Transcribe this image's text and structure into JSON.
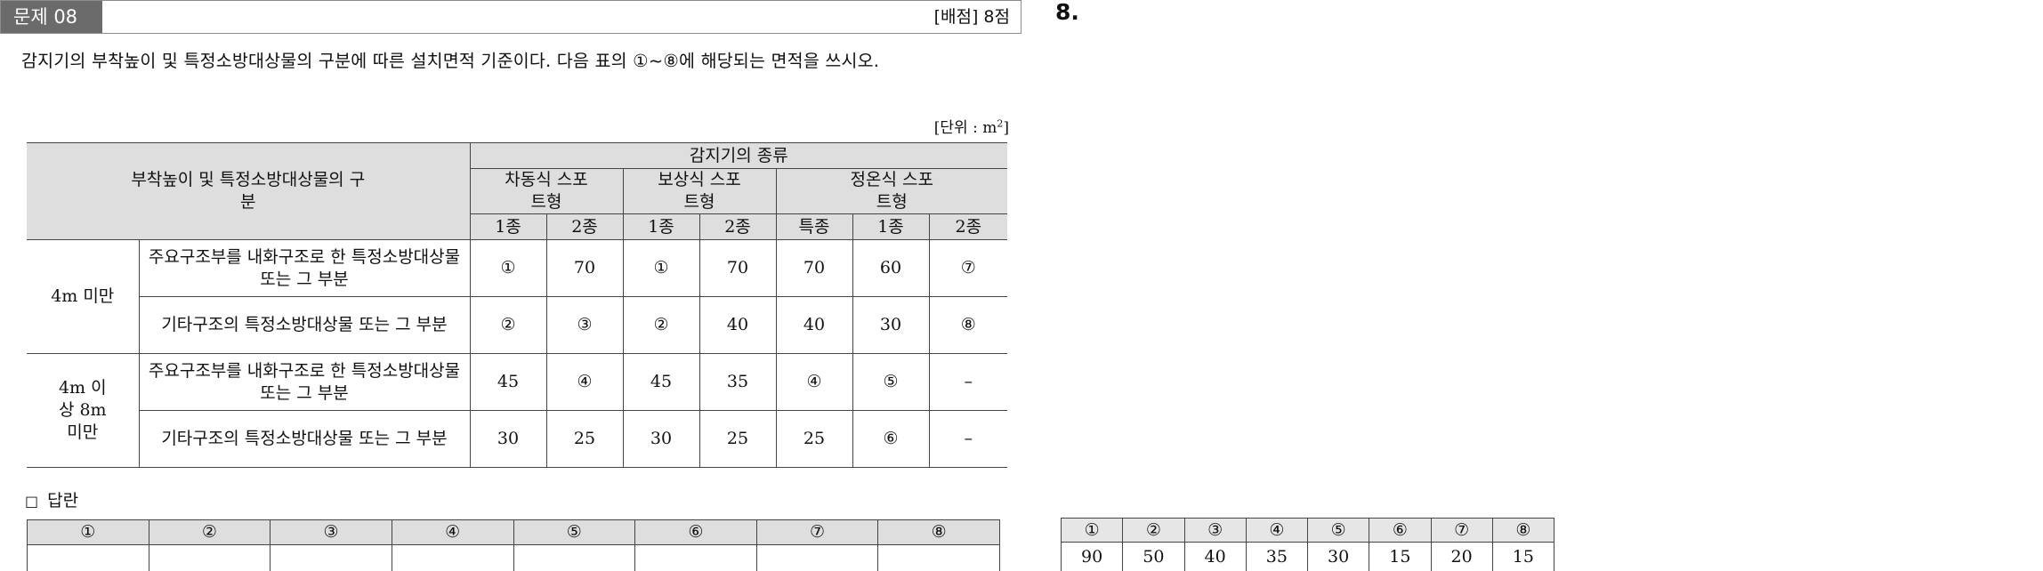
{
  "header": {
    "question_number": "문제 08",
    "score": "[배점] 8점"
  },
  "side_number": "8.",
  "question": "감지기의 부착높이 및 특정소방대상물의 구분에 따른 설치면적 기준이다. 다음 표의 ①~⑧에 해당되는 면적을 쓰시오.",
  "unit_label": "[단위 : m²]",
  "table": {
    "header_left": "부착높이 및 특정소방대상물의 구분",
    "header_type": "감지기의 종류",
    "groups": [
      "차동식 스포트형",
      "보상식 스포트형",
      "정온식 스포트형"
    ],
    "subcols": [
      "1종",
      "2종",
      "1종",
      "2종",
      "특종",
      "1종",
      "2종"
    ],
    "height_groups": [
      "4m 미만",
      "4m 이상 8m 미만"
    ],
    "rows": [
      {
        "desc": "주요구조부를 내화구조로 한 특정소방대상물 또는 그 부분",
        "values": [
          "①",
          "70",
          "①",
          "70",
          "70",
          "60",
          "⑦"
        ]
      },
      {
        "desc": "기타구조의 특정소방대상물 또는 그 부분",
        "values": [
          "②",
          "③",
          "②",
          "40",
          "40",
          "30",
          "⑧"
        ]
      },
      {
        "desc": "주요구조부를 내화구조로 한 특정소방대상물 또는 그 부분",
        "values": [
          "45",
          "④",
          "45",
          "35",
          "④",
          "⑤",
          "–"
        ]
      },
      {
        "desc": "기타구조의 특정소방대상물 또는 그 부분",
        "values": [
          "30",
          "25",
          "30",
          "25",
          "25",
          "⑥",
          "–"
        ]
      }
    ]
  },
  "answer_section": {
    "marker": "□",
    "label": "답란",
    "headers": [
      "①",
      "②",
      "③",
      "④",
      "⑤",
      "⑥",
      "⑦",
      "⑧"
    ],
    "values": [
      "",
      "",
      "",
      "",
      "",
      "",
      "",
      ""
    ]
  },
  "solution": {
    "headers": [
      "①",
      "②",
      "③",
      "④",
      "⑤",
      "⑥",
      "⑦",
      "⑧"
    ],
    "values": [
      "90",
      "50",
      "40",
      "35",
      "30",
      "15",
      "20",
      "15"
    ]
  }
}
